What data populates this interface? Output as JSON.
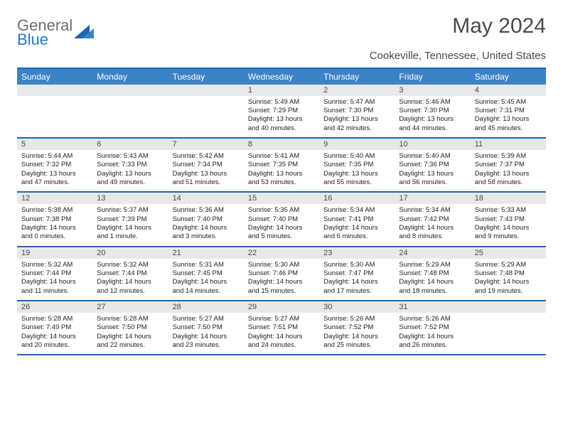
{
  "brand": {
    "word1": "General",
    "word2": "Blue"
  },
  "title": "May 2024",
  "location": "Cookeville, Tennessee, United States",
  "header_bg": "#3c83c6",
  "header_border": "#1f66ad",
  "daynum_bg": "#e7e8e9",
  "text_color": "#222222",
  "cell_font_size": 9.5,
  "day_names": [
    "Sunday",
    "Monday",
    "Tuesday",
    "Wednesday",
    "Thursday",
    "Friday",
    "Saturday"
  ],
  "weeks": [
    [
      null,
      null,
      null,
      {
        "n": 1,
        "sunrise": "5:49 AM",
        "sunset": "7:29 PM",
        "daylight": "13 hours and 40 minutes."
      },
      {
        "n": 2,
        "sunrise": "5:47 AM",
        "sunset": "7:30 PM",
        "daylight": "13 hours and 42 minutes."
      },
      {
        "n": 3,
        "sunrise": "5:46 AM",
        "sunset": "7:30 PM",
        "daylight": "13 hours and 44 minutes."
      },
      {
        "n": 4,
        "sunrise": "5:45 AM",
        "sunset": "7:31 PM",
        "daylight": "13 hours and 45 minutes."
      }
    ],
    [
      {
        "n": 5,
        "sunrise": "5:44 AM",
        "sunset": "7:32 PM",
        "daylight": "13 hours and 47 minutes."
      },
      {
        "n": 6,
        "sunrise": "5:43 AM",
        "sunset": "7:33 PM",
        "daylight": "13 hours and 49 minutes."
      },
      {
        "n": 7,
        "sunrise": "5:42 AM",
        "sunset": "7:34 PM",
        "daylight": "13 hours and 51 minutes."
      },
      {
        "n": 8,
        "sunrise": "5:41 AM",
        "sunset": "7:35 PM",
        "daylight": "13 hours and 53 minutes."
      },
      {
        "n": 9,
        "sunrise": "5:40 AM",
        "sunset": "7:35 PM",
        "daylight": "13 hours and 55 minutes."
      },
      {
        "n": 10,
        "sunrise": "5:40 AM",
        "sunset": "7:36 PM",
        "daylight": "13 hours and 56 minutes."
      },
      {
        "n": 11,
        "sunrise": "5:39 AM",
        "sunset": "7:37 PM",
        "daylight": "13 hours and 58 minutes."
      }
    ],
    [
      {
        "n": 12,
        "sunrise": "5:38 AM",
        "sunset": "7:38 PM",
        "daylight": "14 hours and 0 minutes."
      },
      {
        "n": 13,
        "sunrise": "5:37 AM",
        "sunset": "7:39 PM",
        "daylight": "14 hours and 1 minute."
      },
      {
        "n": 14,
        "sunrise": "5:36 AM",
        "sunset": "7:40 PM",
        "daylight": "14 hours and 3 minutes."
      },
      {
        "n": 15,
        "sunrise": "5:35 AM",
        "sunset": "7:40 PM",
        "daylight": "14 hours and 5 minutes."
      },
      {
        "n": 16,
        "sunrise": "5:34 AM",
        "sunset": "7:41 PM",
        "daylight": "14 hours and 6 minutes."
      },
      {
        "n": 17,
        "sunrise": "5:34 AM",
        "sunset": "7:42 PM",
        "daylight": "14 hours and 8 minutes."
      },
      {
        "n": 18,
        "sunrise": "5:33 AM",
        "sunset": "7:43 PM",
        "daylight": "14 hours and 9 minutes."
      }
    ],
    [
      {
        "n": 19,
        "sunrise": "5:32 AM",
        "sunset": "7:44 PM",
        "daylight": "14 hours and 11 minutes."
      },
      {
        "n": 20,
        "sunrise": "5:32 AM",
        "sunset": "7:44 PM",
        "daylight": "14 hours and 12 minutes."
      },
      {
        "n": 21,
        "sunrise": "5:31 AM",
        "sunset": "7:45 PM",
        "daylight": "14 hours and 14 minutes."
      },
      {
        "n": 22,
        "sunrise": "5:30 AM",
        "sunset": "7:46 PM",
        "daylight": "14 hours and 15 minutes."
      },
      {
        "n": 23,
        "sunrise": "5:30 AM",
        "sunset": "7:47 PM",
        "daylight": "14 hours and 17 minutes."
      },
      {
        "n": 24,
        "sunrise": "5:29 AM",
        "sunset": "7:48 PM",
        "daylight": "14 hours and 18 minutes."
      },
      {
        "n": 25,
        "sunrise": "5:29 AM",
        "sunset": "7:48 PM",
        "daylight": "14 hours and 19 minutes."
      }
    ],
    [
      {
        "n": 26,
        "sunrise": "5:28 AM",
        "sunset": "7:49 PM",
        "daylight": "14 hours and 20 minutes."
      },
      {
        "n": 27,
        "sunrise": "5:28 AM",
        "sunset": "7:50 PM",
        "daylight": "14 hours and 22 minutes."
      },
      {
        "n": 28,
        "sunrise": "5:27 AM",
        "sunset": "7:50 PM",
        "daylight": "14 hours and 23 minutes."
      },
      {
        "n": 29,
        "sunrise": "5:27 AM",
        "sunset": "7:51 PM",
        "daylight": "14 hours and 24 minutes."
      },
      {
        "n": 30,
        "sunrise": "5:26 AM",
        "sunset": "7:52 PM",
        "daylight": "14 hours and 25 minutes."
      },
      {
        "n": 31,
        "sunrise": "5:26 AM",
        "sunset": "7:52 PM",
        "daylight": "14 hours and 26 minutes."
      },
      null
    ]
  ],
  "labels": {
    "sunrise": "Sunrise:",
    "sunset": "Sunset:",
    "daylight": "Daylight:"
  }
}
